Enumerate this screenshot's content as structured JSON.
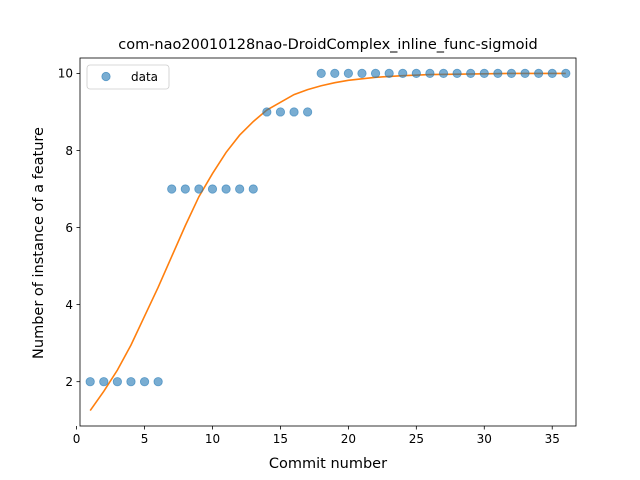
{
  "chart_data": {
    "type": "scatter",
    "title": "com-nao20010128nao-DroidComplex_inline_func-sigmoid",
    "xlabel": "Commit number",
    "ylabel": "Number of instance of a feature",
    "xlim": [
      0.25,
      36.75
    ],
    "ylim": [
      0.85,
      10.4
    ],
    "xticks": [
      0,
      5,
      10,
      15,
      20,
      25,
      30,
      35
    ],
    "yticks": [
      2,
      4,
      6,
      8,
      10
    ],
    "grid": false,
    "legend": {
      "position": "top-left",
      "entries": [
        "data"
      ]
    },
    "colors": {
      "data": "#1f77b4",
      "fit": "#ff7f0e"
    },
    "series": [
      {
        "name": "data",
        "kind": "scatter",
        "x": [
          1,
          2,
          3,
          4,
          5,
          6,
          7,
          8,
          9,
          10,
          11,
          12,
          13,
          14,
          15,
          16,
          17,
          18,
          19,
          20,
          21,
          22,
          23,
          24,
          25,
          26,
          27,
          28,
          29,
          30,
          31,
          32,
          33,
          34,
          35,
          36
        ],
        "y": [
          2,
          2,
          2,
          2,
          2,
          2,
          7,
          7,
          7,
          7,
          7,
          7,
          7,
          9,
          9,
          9,
          9,
          10,
          10,
          10,
          10,
          10,
          10,
          10,
          10,
          10,
          10,
          10,
          10,
          10,
          10,
          10,
          10,
          10,
          10,
          10
        ]
      },
      {
        "kind": "line",
        "x": [
          1,
          2,
          3,
          4,
          5,
          6,
          7,
          8,
          9,
          10,
          11,
          12,
          13,
          14,
          15,
          16,
          17,
          18,
          19,
          20,
          22,
          24,
          26,
          28,
          30,
          32,
          34,
          36
        ],
        "y": [
          1.25,
          1.75,
          2.3,
          2.95,
          3.7,
          4.45,
          5.25,
          6.05,
          6.8,
          7.4,
          7.95,
          8.4,
          8.75,
          9.05,
          9.25,
          9.45,
          9.58,
          9.68,
          9.76,
          9.82,
          9.9,
          9.94,
          9.97,
          9.98,
          9.99,
          10.0,
          10.0,
          10.0
        ]
      }
    ]
  }
}
